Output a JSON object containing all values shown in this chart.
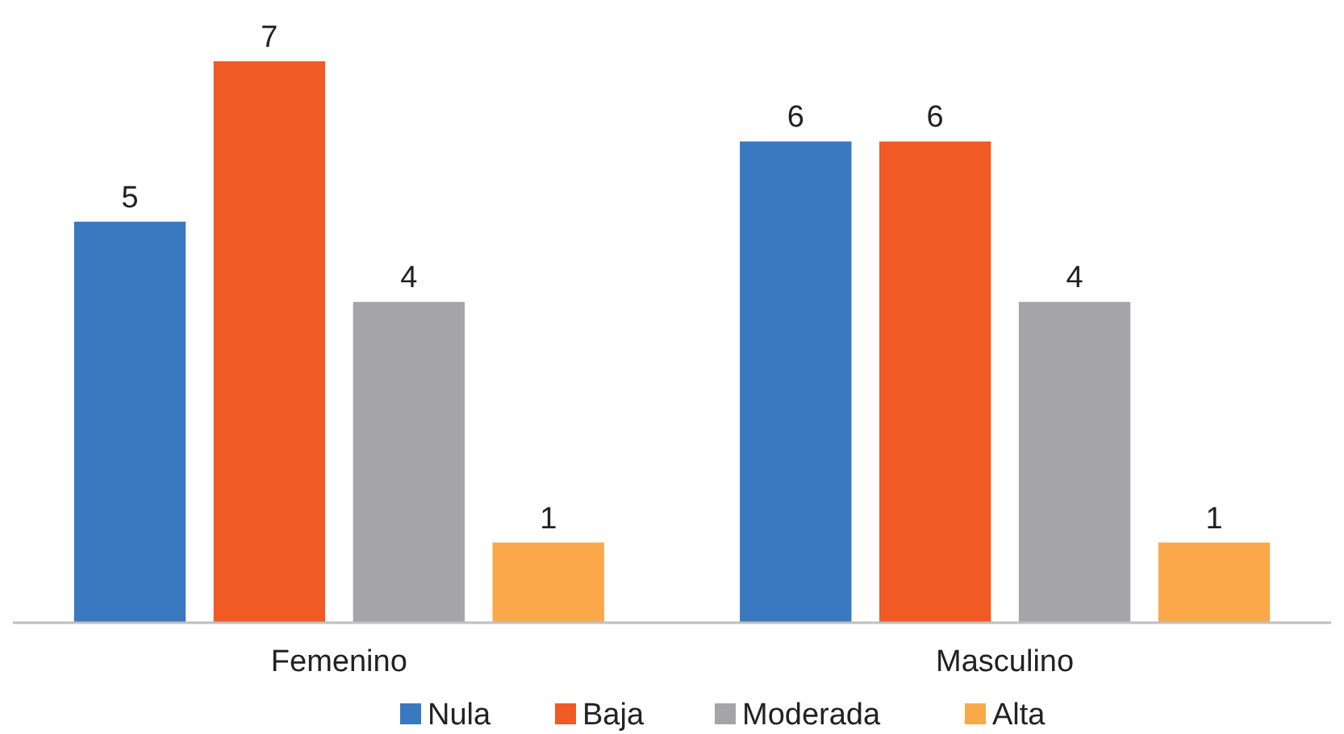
{
  "chart_data": {
    "type": "bar",
    "categories": [
      "Femenino",
      "Masculino"
    ],
    "series": [
      {
        "name": "Nula",
        "color": "#3a78c0",
        "values": [
          5,
          6
        ]
      },
      {
        "name": "Baja",
        "color": "#f05a24",
        "values": [
          7,
          6
        ]
      },
      {
        "name": "Moderada",
        "color": "#a5a5a7",
        "values": [
          4,
          4
        ]
      },
      {
        "name": "Alta",
        "color": "#fba84a",
        "values": [
          1,
          1
        ]
      }
    ],
    "data_labels": true,
    "legend": "bottom",
    "grid": false
  }
}
